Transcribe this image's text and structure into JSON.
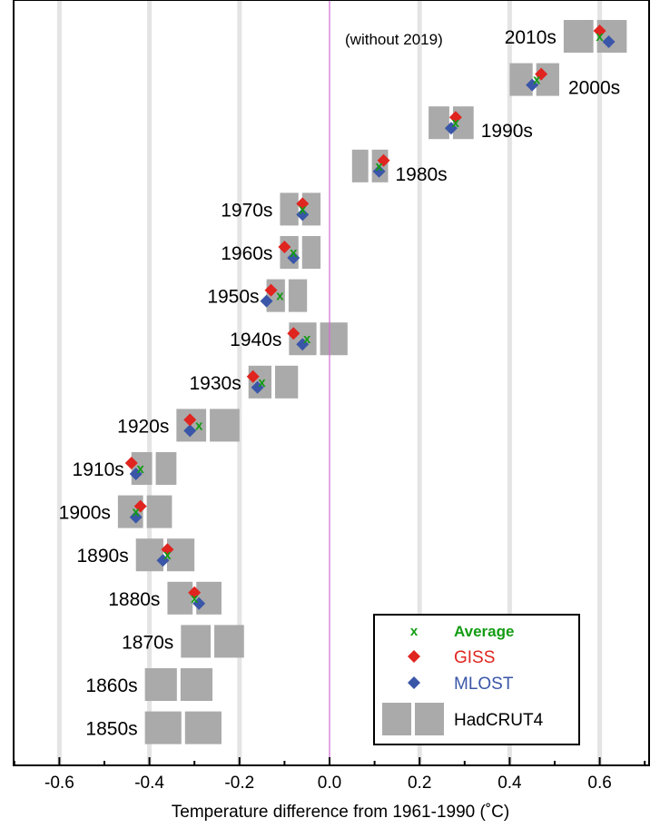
{
  "chart_data": {
    "type": "scatter",
    "title": "",
    "xlabel": "Temperature difference from 1961-1990 (˚C)",
    "ylabel": "",
    "xlim": [
      -0.7,
      0.7
    ],
    "x_ticks": [
      "-0.6",
      "-0.4",
      "-0.2",
      "0.0",
      "0.2",
      "0.4",
      "0.6"
    ],
    "x_tick_values": [
      -0.6,
      -0.4,
      -0.2,
      0.0,
      0.2,
      0.4,
      0.6
    ],
    "grid": "vertical",
    "note": "(without 2019)",
    "categories": [
      "2010s",
      "2000s",
      "1990s",
      "1980s",
      "1970s",
      "1960s",
      "1950s",
      "1940s",
      "1930s",
      "1920s",
      "1910s",
      "1900s",
      "1890s",
      "1880s",
      "1870s",
      "1860s",
      "1850s"
    ],
    "series": [
      {
        "name": "Average",
        "marker": "x",
        "color": "#139c13",
        "values": [
          0.6,
          0.46,
          0.28,
          0.11,
          -0.06,
          -0.08,
          -0.11,
          -0.05,
          -0.15,
          -0.29,
          -0.42,
          -0.43,
          -0.36,
          -0.3,
          null,
          null,
          null
        ]
      },
      {
        "name": "GISS",
        "marker": "diamond",
        "color": "#e0241f",
        "values": [
          0.6,
          0.47,
          0.28,
          0.12,
          -0.06,
          -0.1,
          -0.13,
          -0.08,
          -0.17,
          -0.31,
          -0.44,
          -0.42,
          -0.36,
          -0.3,
          null,
          null,
          null
        ]
      },
      {
        "name": "MLOST",
        "marker": "diamond",
        "color": "#3a56a8",
        "values": [
          0.62,
          0.45,
          0.27,
          0.11,
          -0.06,
          -0.08,
          -0.14,
          -0.06,
          -0.16,
          -0.31,
          -0.43,
          -0.43,
          -0.37,
          -0.29,
          null,
          null,
          null
        ]
      },
      {
        "name": "HadCRUT4",
        "marker": "box-pair",
        "color": "#aaaaaa",
        "values": [
          0.59,
          0.46,
          0.27,
          0.09,
          -0.07,
          -0.07,
          -0.1,
          -0.03,
          -0.14,
          -0.29,
          -0.4,
          -0.41,
          -0.34,
          -0.3,
          -0.28,
          -0.33,
          -0.33
        ],
        "ranges": [
          [
            0.52,
            0.66
          ],
          [
            0.4,
            0.51
          ],
          [
            0.22,
            0.32
          ],
          [
            0.05,
            0.13
          ],
          [
            -0.11,
            -0.02
          ],
          [
            -0.11,
            -0.02
          ],
          [
            -0.14,
            -0.05
          ],
          [
            -0.09,
            0.04
          ],
          [
            -0.18,
            -0.07
          ],
          [
            -0.34,
            -0.2
          ],
          [
            -0.44,
            -0.34
          ],
          [
            -0.47,
            -0.35
          ],
          [
            -0.43,
            -0.3
          ],
          [
            -0.36,
            -0.24
          ],
          [
            -0.33,
            -0.19
          ],
          [
            -0.41,
            -0.26
          ],
          [
            -0.41,
            -0.24
          ]
        ]
      }
    ],
    "legend": {
      "position": "bottom-right",
      "entries": [
        "Average",
        "GISS",
        "MLOST",
        "HadCRUT4"
      ],
      "average_marker_text": "x"
    },
    "colors": {
      "average": "#139c13",
      "giss": "#e0241f",
      "mlost": "#3a56a8",
      "hadcrut4": "#aaaaaa",
      "zero_line": "#d46ad4",
      "grid": "#e4e4e4"
    }
  }
}
